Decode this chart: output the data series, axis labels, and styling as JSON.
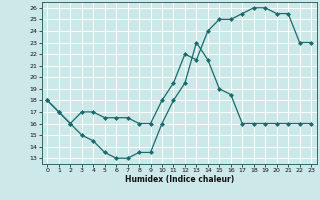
{
  "xlabel": "Humidex (Indice chaleur)",
  "bg_color": "#cce8e8",
  "grid_color": "#ffffff",
  "line_color": "#1a6b6b",
  "markersize": 2.0,
  "linewidth": 0.9,
  "xlim": [
    -0.5,
    23.5
  ],
  "ylim": [
    12.5,
    26.5
  ],
  "xticks": [
    0,
    1,
    2,
    3,
    4,
    5,
    6,
    7,
    8,
    9,
    10,
    11,
    12,
    13,
    14,
    15,
    16,
    17,
    18,
    19,
    20,
    21,
    22,
    23
  ],
  "yticks": [
    13,
    14,
    15,
    16,
    17,
    18,
    19,
    20,
    21,
    22,
    23,
    24,
    25,
    26
  ],
  "line1_x": [
    0,
    1,
    2,
    3,
    4,
    5,
    6,
    7,
    8,
    9,
    10,
    11,
    12,
    13,
    14,
    15,
    16,
    17,
    18,
    19,
    20,
    21,
    22,
    23
  ],
  "line1_y": [
    18,
    17,
    16,
    15,
    14.5,
    13.5,
    13,
    13,
    13.5,
    13.5,
    16,
    18,
    19.5,
    23,
    21.5,
    19,
    18.5,
    16,
    16,
    16,
    16,
    16,
    16,
    16
  ],
  "line2_x": [
    0,
    1,
    2,
    3,
    4,
    5,
    6,
    7,
    8,
    9,
    10,
    11,
    12,
    13,
    14,
    15,
    16,
    17,
    18,
    19,
    20,
    21,
    22,
    23
  ],
  "line2_y": [
    18,
    17,
    16,
    17,
    17,
    16.5,
    16.5,
    16.5,
    16,
    16,
    18,
    19.5,
    22,
    21.5,
    24,
    25,
    25,
    25.5,
    26,
    26,
    25.5,
    25.5,
    23,
    23
  ]
}
